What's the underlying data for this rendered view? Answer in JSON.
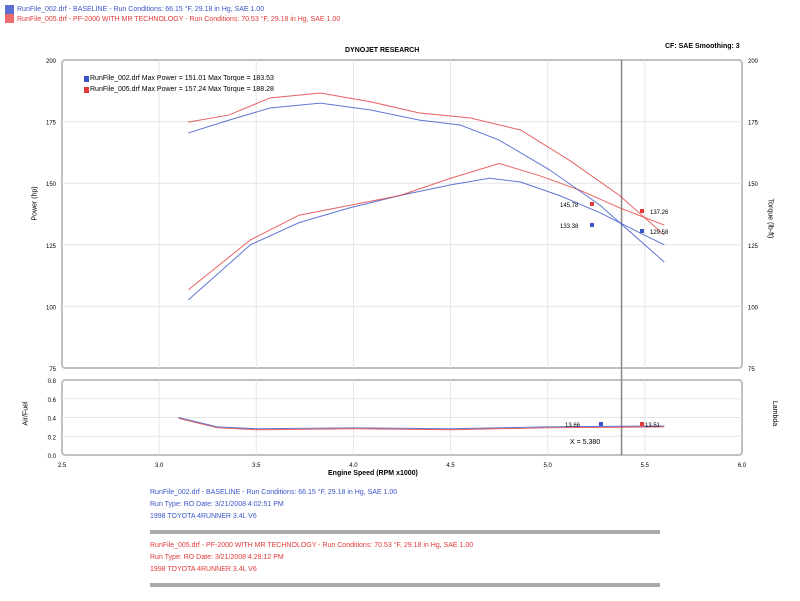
{
  "header": {
    "run1": "RunFile_002.drf - BASELINE  -  Run Conditions: 66.15 °F, 29.18 in Hg, SAE 1.00",
    "run2": "RunFile_005.drf - PF-2000 WITH MR TECHNOLOGY  -  Run Conditions: 70.53 °F, 29.18 in Hg, SAE 1.00",
    "blue": "#3a55c8",
    "red": "#e23a3a"
  },
  "chart_data": [
    {
      "type": "line",
      "title": "DYNOJET RESEARCH",
      "subtitle": "CF: SAE  Smoothing: 3",
      "ylabel": "Power (hp)",
      "y2label": "Torque (lb-ft)",
      "xlabel": "Engine Speed (RPM x1000)",
      "xlim": [
        2.5,
        6.0
      ],
      "ylim": [
        75,
        200
      ],
      "y2lim": [
        75,
        200
      ],
      "grid": true,
      "xticks": [
        "2.5",
        "3.0",
        "3.5",
        "4.0",
        "4.5",
        "5.0",
        "5.5",
        "6.0"
      ],
      "yticks": [
        "75",
        "100",
        "125",
        "150",
        "175",
        "200"
      ],
      "legend": [
        "RunFile_002.drf Max Power = 151.01     Max Torque = 183.53",
        "RunFile_005.drf Max Power = 157.24     Max Torque = 188.28"
      ],
      "legend_position": "top-left",
      "cursor": {
        "x": 5.38,
        "label": "X = 5.380"
      },
      "cursor_labels": [
        {
          "text": "145.78",
          "color": "red"
        },
        {
          "text": "133.38",
          "color": "blue"
        },
        {
          "text": "137.26",
          "color": "red"
        },
        {
          "text": "129.58",
          "color": "blue"
        }
      ],
      "series": [
        {
          "kind": "power",
          "color": "blue",
          "x": [
            3.15,
            3.47,
            3.72,
            3.98,
            4.24,
            4.5,
            4.7,
            4.86,
            5.06,
            5.27,
            5.47,
            5.6
          ],
          "y": [
            102.6,
            125,
            134,
            140,
            145,
            149.3,
            152,
            150.5,
            145,
            138,
            130,
            125
          ]
        },
        {
          "kind": "power",
          "color": "red",
          "x": [
            3.15,
            3.47,
            3.72,
            3.98,
            4.24,
            4.5,
            4.75,
            4.96,
            5.17,
            5.37,
            5.6
          ],
          "y": [
            106.7,
            127,
            137,
            141,
            145,
            152,
            158,
            153,
            147,
            140,
            133
          ]
        },
        {
          "kind": "torque",
          "color": "blue",
          "x": [
            3.15,
            3.36,
            3.57,
            3.83,
            4.09,
            4.34,
            4.55,
            4.75,
            5.01,
            5.27,
            5.6
          ],
          "y": [
            170.4,
            175.6,
            180.5,
            182.5,
            179.7,
            175.6,
            173.6,
            167.5,
            155.4,
            141,
            118
          ]
        },
        {
          "kind": "torque",
          "color": "red",
          "x": [
            3.15,
            3.36,
            3.57,
            3.83,
            4.09,
            4.34,
            4.6,
            4.86,
            5.11,
            5.37,
            5.6
          ],
          "y": [
            174.8,
            177.7,
            184.6,
            186.6,
            183,
            178.5,
            176.5,
            171.6,
            159.4,
            145,
            129
          ]
        }
      ]
    },
    {
      "type": "line",
      "ylabel": "Air/Fuel",
      "y2label": "Lambda",
      "xlim": [
        2.5,
        6.0
      ],
      "ylim": [
        0,
        0.8
      ],
      "yticks": [
        "0.0",
        "0.2",
        "0.4",
        "0.6",
        "0.8"
      ],
      "cursor_labels": [
        {
          "text": "13.66",
          "color": "blue"
        },
        {
          "text": "13.51",
          "color": "red"
        }
      ],
      "series": [
        {
          "color": "blue",
          "x": [
            3.1,
            3.3,
            3.5,
            4.0,
            4.5,
            5.0,
            5.6
          ],
          "y": [
            0.4,
            0.3,
            0.28,
            0.29,
            0.28,
            0.3,
            0.31
          ]
        },
        {
          "color": "red",
          "x": [
            3.1,
            3.3,
            3.5,
            4.0,
            4.5,
            5.0,
            5.6
          ],
          "y": [
            0.39,
            0.29,
            0.27,
            0.28,
            0.27,
            0.29,
            0.3
          ]
        }
      ]
    }
  ],
  "footer": {
    "blue": [
      "RunFile_002.drf - BASELINE  -  Run Conditions: 66.15 °F, 29.18 in Hg, SAE 1.00",
      "Run Type: RO  Date: 3/21/2008 4:02:51 PM",
      "1998 TOYOTA 4RUNNER 3.4L V6"
    ],
    "red": [
      "RunFile_005.drf - PF-2000 WITH MR TECHNOLOGY  -  Run Conditions: 70.53 °F, 29.18 in Hg, SAE 1.00",
      "Run Type: RO  Date: 3/21/2008 4:28:12 PM",
      "1998 TOYOTA 4RUNNER 3.4L V6"
    ]
  }
}
